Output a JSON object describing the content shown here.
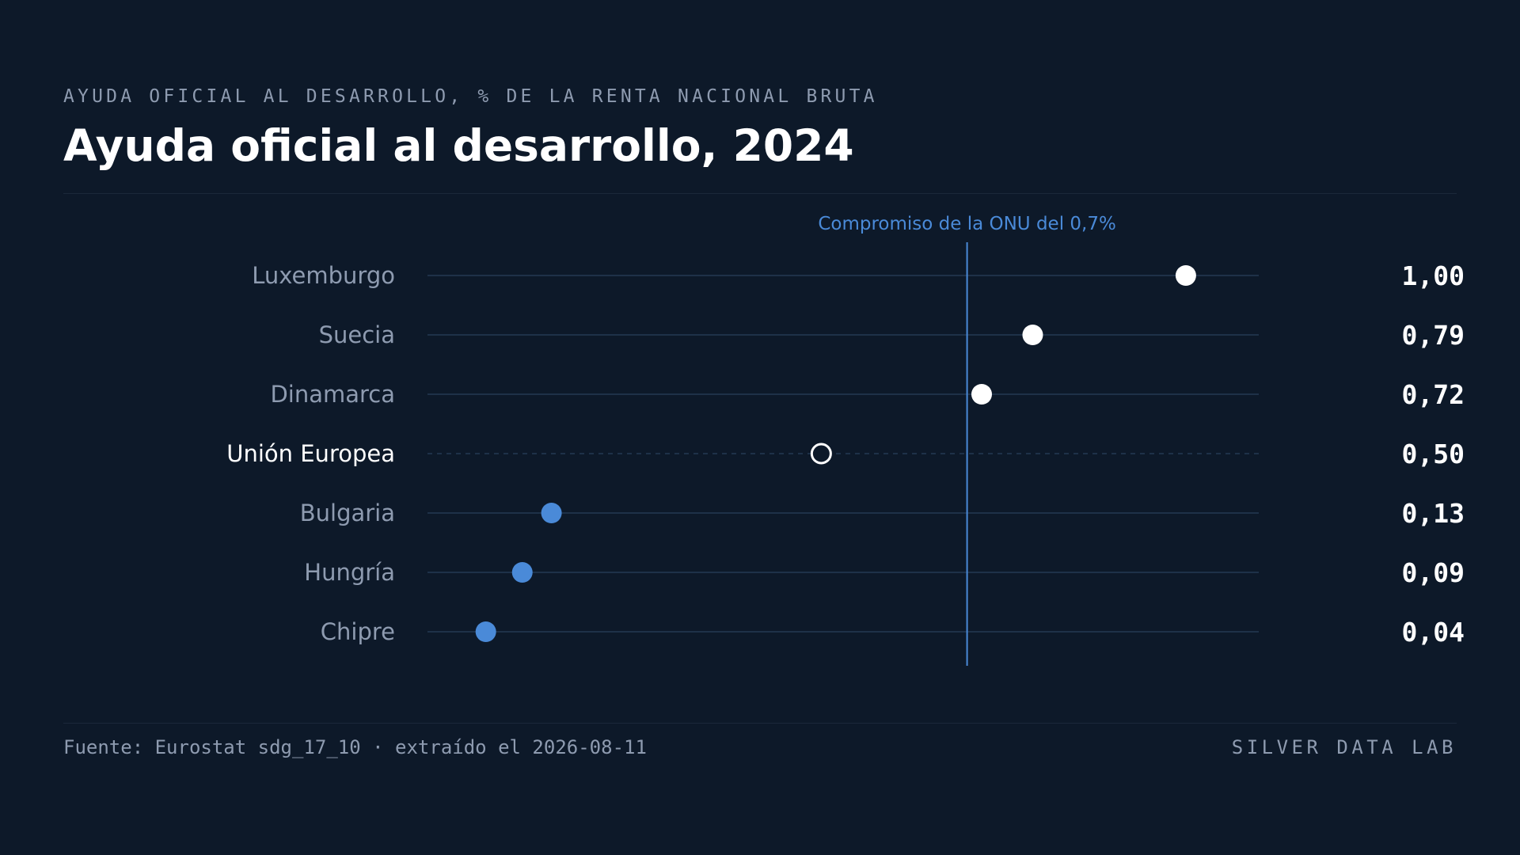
{
  "header": {
    "kicker": "AYUDA OFICIAL AL DESARROLLO, % DE LA RENTA NACIONAL BRUTA",
    "title": "Ayuda oficial al desarrollo, 2024"
  },
  "footer": {
    "source": "Fuente: Eurostat sdg_17_10 · extraído el 2026-08-11",
    "brand": "SILVER DATA LAB"
  },
  "colors": {
    "background": "#0d1929",
    "accent": "#4a8ad8",
    "above_target": "#ffffff",
    "below_target": "#4a8ad8",
    "muted_text": "#8e9bb0",
    "track": "#1e3148"
  },
  "chart_data": {
    "type": "dot",
    "title": "Ayuda oficial al desarrollo, 2024",
    "unit": "% de la renta nacional bruta",
    "xlim": [
      -0.04,
      1.1
    ],
    "grid": false,
    "reference_line": {
      "value": 0.7,
      "label": "Compromiso de la ONU del 0,7%"
    },
    "categories": [
      "Luxemburgo",
      "Suecia",
      "Dinamarca",
      "Unión Europea",
      "Bulgaria",
      "Hungría",
      "Chipre"
    ],
    "values": [
      1.0,
      0.79,
      0.72,
      0.5,
      0.13,
      0.09,
      0.04
    ],
    "value_labels": [
      "1,00",
      "0,79",
      "0,72",
      "0,50",
      "0,13",
      "0,09",
      "0,04"
    ],
    "aggregate": "Unión Europea"
  }
}
